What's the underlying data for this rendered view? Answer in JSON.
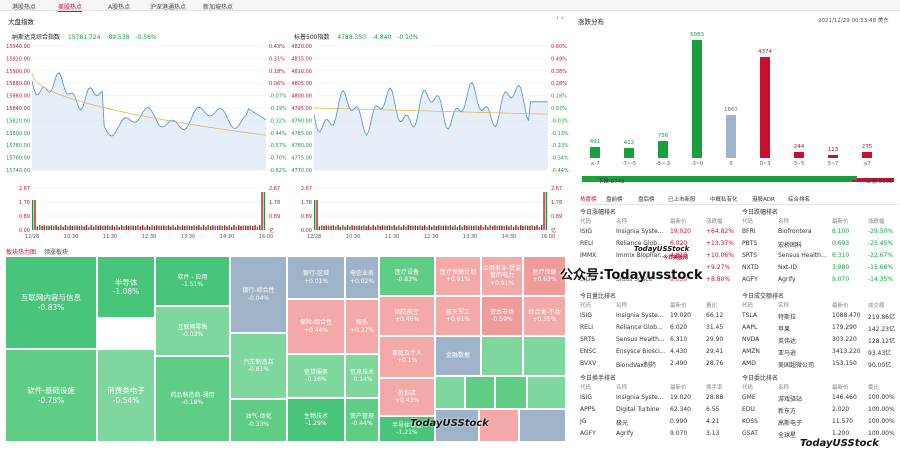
{
  "nav": {
    "tabs": [
      "港股热点",
      "美股热点",
      "A股热点",
      "沪深港通热点",
      "新加坡热点"
    ],
    "active": 1
  },
  "market_index": {
    "title": "大盘指数",
    "nasdaq": {
      "name": "纳斯达克综合指数",
      "value": "15781.724",
      "change": "-89.538",
      "pct": "-0.56%",
      "y_left": [
        "15940.00",
        "15920.00",
        "15900.00",
        "15880.00",
        "15860.00",
        "15840.00",
        "15820.00",
        "15800.00",
        "15780.00",
        "15760.00",
        "15740.00"
      ],
      "y_right": [
        "0.43%",
        "0.31%",
        "0.18%",
        "0.06%",
        "-0.07%",
        "-0.19%",
        "-0.32%",
        "-0.44%",
        "-0.57%",
        "-0.70%",
        "-0.82%"
      ],
      "vol_left": [
        "2.67",
        "1.78",
        "0.89",
        "0.00"
      ],
      "vol_right": [
        "2.67",
        "1.78",
        "0.89",
        "亿"
      ],
      "x": [
        "12/28",
        "10:30",
        "11:30",
        "12:30",
        "13:30",
        "14:30",
        "16:00"
      ]
    },
    "sp500": {
      "name": "标普500指数",
      "value": "4788.350",
      "change": "-4.840",
      "pct": "-0.10%",
      "y_left": [
        "4820.00",
        "4815.00",
        "4810.00",
        "4805.00",
        "4800.00",
        "4795.00",
        "4790.00",
        "4785.00",
        "4780.00",
        "4775.00",
        "4770.00"
      ],
      "y_right": [
        "0.60%",
        "0.49%",
        "0.38%",
        "0.28%",
        "0.18%",
        "0.07%",
        "-0.03%",
        "-0.13%",
        "-0.23%",
        "-0.34%",
        "-0.44%"
      ],
      "vol_left": [
        "2.67",
        "1.78",
        "0.89",
        "0.00"
      ],
      "vol_right": [
        "2.67",
        "1.78",
        "0.89",
        "亿"
      ],
      "x": [
        "12/28",
        "10:30",
        "11:30",
        "12:30",
        "13:30",
        "14:30",
        "16:00"
      ]
    }
  },
  "distribution": {
    "title": "涨跌分布",
    "datetime": "2021/12/29 00:53:48 美东",
    "bins": [
      {
        "label": "≤-7",
        "value": 491,
        "color": "#17a03c"
      },
      {
        "label": "-7~-5",
        "value": 412,
        "color": "#17a03c"
      },
      {
        "label": "-5~-3",
        "value": 756,
        "color": "#17a03c"
      },
      {
        "label": "-3~0",
        "value": 5083,
        "color": "#17a03c"
      },
      {
        "label": "0",
        "value": 1867,
        "color": "#9fb4cc"
      },
      {
        "label": "0~3",
        "value": 4374,
        "color": "#c8102e"
      },
      {
        "label": "3~5",
        "value": 244,
        "color": "#c8102e"
      },
      {
        "label": "5~7",
        "value": 113,
        "color": "#c8102e"
      },
      {
        "label": "≥7",
        "value": 275,
        "color": "#c8102e"
      }
    ],
    "down_label": "下跌 6742",
    "up_label": "上涨 5006"
  },
  "tabs2": [
    "热度榜",
    "盘前榜",
    "盘后榜",
    "已上市新股",
    "中概私有化",
    "港股ADR",
    "综合排名"
  ],
  "tables": {
    "gainers": {
      "title": "今日涨幅排名",
      "cols": [
        "代码",
        "名称",
        "最新价",
        "涨跌幅"
      ],
      "rows": [
        [
          "ISIG",
          "Insignia Syste...",
          "19.020",
          "+64.82%"
        ],
        [
          "RELI",
          "Reliance Glob...",
          "6.020",
          "+13.37%"
        ],
        [
          "IMMX",
          "Immix Biophar...",
          "4.810",
          "+10.06%"
        ],
        [
          "",
          "",
          "",
          "+9.27%"
        ],
        [
          "SIDU",
          "Sidus Space",
          "9.030",
          "+8.80%"
        ]
      ]
    },
    "losers": {
      "title": "今日跌幅排名",
      "cols": [
        "代码",
        "名称",
        "最新价",
        "涨跌幅"
      ],
      "rows": [
        [
          "BFRI",
          "Biofrontera",
          "8.100",
          "-29.50%"
        ],
        [
          "PBTS",
          "宏桥困科",
          "0.693",
          "-25.45%"
        ],
        [
          "SRTS",
          "Sensus Health...",
          "6.310",
          "-22.67%"
        ],
        [
          "NXTD",
          "Nxt-ID",
          "3.980",
          "-15.68%"
        ],
        [
          "AGFY",
          "Agrify",
          "9.070",
          "-14.35%"
        ]
      ]
    },
    "volume_ratio": {
      "title": "今日量比排名",
      "cols": [
        "代码",
        "名称",
        "最新价",
        "量比"
      ],
      "rows": [
        [
          "ISIG",
          "Insignia Syste...",
          "19.020",
          "66.12"
        ],
        [
          "RELI",
          "Reliance Glob...",
          "6.020",
          "31.45"
        ],
        [
          "SRTS",
          "Sensus Health...",
          "6.310",
          "29.90"
        ],
        [
          "ENSC",
          "Ensysce Biosci...",
          "4.430",
          "29.41"
        ],
        [
          "BVXV",
          "BiondVax制药",
          "2.490",
          "28.76"
        ]
      ]
    },
    "turnover_amt": {
      "title": "今日成交额排名",
      "cols": [
        "代码",
        "名称",
        "最新价",
        "成交额"
      ],
      "rows": [
        [
          "TSLA",
          "特斯拉",
          "1088.470",
          "219.86亿"
        ],
        [
          "AAPL",
          "苹果",
          "179.290",
          "142.23亿"
        ],
        [
          "NVDA",
          "英伟达",
          "303.220",
          "128.12亿"
        ],
        [
          "AMZN",
          "亚马逊",
          "3413.220",
          "93.43亿"
        ],
        [
          "AMD",
          "美国超微公司",
          "153.150",
          "90.00亿"
        ]
      ]
    },
    "turnover_rate": {
      "title": "今日换手排名",
      "cols": [
        "代码",
        "名称",
        "最新价",
        "换手率"
      ],
      "rows": [
        [
          "ISIG",
          "Insignia Syste...",
          "19.020",
          "28.88"
        ],
        [
          "APPS",
          "Digital Turbine",
          "62.340",
          "6.55"
        ],
        [
          "JG",
          "极光",
          "0.990",
          "4.21"
        ],
        [
          "AGFY",
          "Agrify",
          "9.070",
          "3.13"
        ]
      ]
    },
    "commission": {
      "title": "今日委比排名",
      "cols": [
        "代码",
        "名称",
        "最新价",
        "委比"
      ],
      "rows": [
        [
          "GME",
          "游戏驿站",
          "146.460",
          "100.00%"
        ],
        [
          "EDU",
          "新东方",
          "2.020",
          "100.00%"
        ],
        [
          "KOSS",
          "高斯电子",
          "11.570",
          "100.00%"
        ],
        [
          "GSAT",
          "全球星",
          "1.200",
          "100.00%"
        ]
      ]
    }
  },
  "heatmap": {
    "tabs": [
      "板块热力图",
      "领涨板块"
    ],
    "tiles": [
      {
        "name": "互联网内容与信息",
        "pct": "-0.83%"
      },
      {
        "name": "软件-基础设施",
        "pct": "-0.78%"
      },
      {
        "name": "半导体",
        "pct": "-1.08%"
      },
      {
        "name": "消费类电子",
        "pct": "-0.54%"
      },
      {
        "name": "软件 - 应用",
        "pct": "-1.51%"
      },
      {
        "name": "互联网零售",
        "pct": "-0.03%"
      },
      {
        "name": "药品制造商-通用",
        "pct": "-0.18%"
      },
      {
        "name": "银行-综合性",
        "pct": "-0.04%"
      },
      {
        "name": "汽车制造商",
        "pct": "-0.81%"
      },
      {
        "name": "油气-体化",
        "pct": "-0.33%"
      },
      {
        "name": "银行-区域",
        "pct": "+0.01%"
      },
      {
        "name": "电信业务",
        "pct": "+0.02%"
      },
      {
        "name": "保险-综合性",
        "pct": "+0.44%"
      },
      {
        "name": "信贷服务",
        "pct": "-0.16%"
      },
      {
        "name": "生物技术",
        "pct": "-1.29%"
      },
      {
        "name": "医疗设备",
        "pct": "-0.83%"
      },
      {
        "name": "医疗保健计划",
        "pct": "+0.91%"
      },
      {
        "name": "公用事业-受监管的电力",
        "pct": "+0.91%"
      },
      {
        "name": "医疗保健",
        "pct": "+0.63%"
      },
      {
        "name": "娱乐",
        "pct": "+0.37%"
      },
      {
        "name": "国防航空",
        "pct": "+0.46%"
      },
      {
        "name": "航天军工",
        "pct": "+0.61%"
      },
      {
        "name": "资本市场",
        "pct": "-0.59%"
      },
      {
        "name": "综合类-不动",
        "pct": "+0.35%"
      },
      {
        "name": "家庭及个人",
        "pct": "+0.1%"
      },
      {
        "name": "金融数据",
        "pct": ""
      },
      {
        "name": "资产管理",
        "pct": "-0.44%"
      },
      {
        "name": "半导体设备",
        "pct": "-1.21%"
      },
      {
        "name": "信息技术",
        "pct": "-0.14%"
      },
      {
        "name": "折扣店",
        "pct": "+0.43%"
      }
    ]
  },
  "watermark": {
    "small": "TodayUSStock",
    "small_sub": "今日美股网",
    "big": "公众号:Todayusstock"
  }
}
